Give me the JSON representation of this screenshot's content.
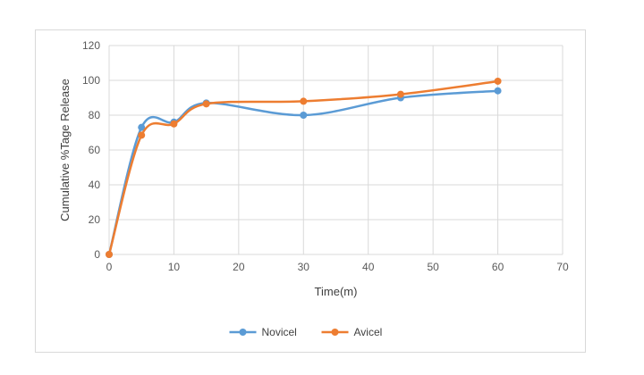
{
  "chart_data": {
    "type": "line",
    "smooth": true,
    "title": "",
    "xlabel": "Time(m)",
    "ylabel": "Cumulative %Tage Release",
    "xlim": [
      0,
      70
    ],
    "ylim": [
      0,
      120
    ],
    "xticks": [
      0,
      10,
      20,
      30,
      40,
      50,
      60,
      70
    ],
    "yticks": [
      0,
      20,
      40,
      60,
      80,
      100,
      120
    ],
    "grid": true,
    "legend_position": "bottom",
    "x": [
      0,
      5,
      10,
      15,
      30,
      45,
      60
    ],
    "series": [
      {
        "name": "Novicel",
        "color": "#5b9bd5",
        "values": [
          0,
          73,
          76,
          87,
          80,
          90,
          94
        ]
      },
      {
        "name": "Avicel",
        "color": "#ed7d31",
        "values": [
          0,
          68.5,
          75,
          86.5,
          88,
          92,
          99.5
        ]
      }
    ]
  }
}
